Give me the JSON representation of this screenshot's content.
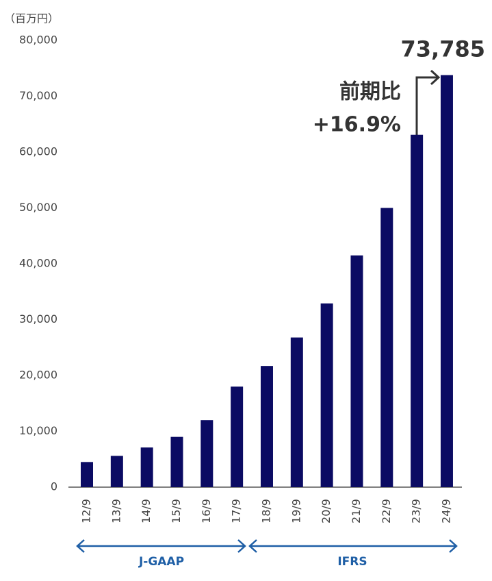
{
  "chart_data": {
    "type": "bar",
    "unit_label": "（百万円）",
    "categories": [
      "12/9",
      "13/9",
      "14/9",
      "15/9",
      "16/9",
      "17/9",
      "18/9",
      "19/9",
      "20/9",
      "21/9",
      "22/9",
      "23/9",
      "24/9"
    ],
    "values": [
      4500,
      5600,
      7100,
      9000,
      12000,
      18000,
      21700,
      26800,
      32900,
      41500,
      50000,
      63100,
      73785
    ],
    "value_labels": [
      null,
      null,
      null,
      null,
      null,
      null,
      null,
      null,
      null,
      null,
      null,
      null,
      "73,785"
    ],
    "color": "#0b0b63",
    "ylim": [
      0,
      80000
    ],
    "yticks": [
      0,
      {
        "value": 10000,
        "label": "10,000"
      },
      {
        "value": 20000,
        "label": "20,000"
      },
      {
        "value": 30000,
        "label": "30,000"
      },
      {
        "value": 40000,
        "label": "40,000"
      },
      {
        "value": 50000,
        "label": "50,000"
      },
      {
        "value": 60000,
        "label": "60,000"
      },
      {
        "value": 70000,
        "label": "70,000"
      },
      {
        "value": 80000,
        "label": "80,000"
      }
    ],
    "grid": false,
    "annotation": {
      "line1": "前期比",
      "line2": "+16.9%"
    },
    "periods": [
      "J-GAAP",
      "IFRS"
    ]
  }
}
